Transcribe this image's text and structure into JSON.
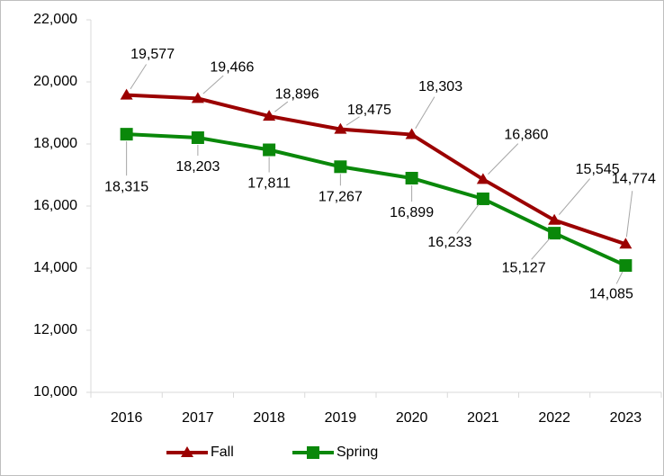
{
  "chart_data": {
    "type": "line",
    "categories": [
      "2016",
      "2017",
      "2018",
      "2019",
      "2020",
      "2021",
      "2022",
      "2023"
    ],
    "series": [
      {
        "name": "Fall",
        "color": "#9b0000",
        "marker": "triangle",
        "values": [
          19577,
          19466,
          18896,
          18475,
          18303,
          16860,
          15545,
          14774
        ],
        "value_labels": [
          "19,577",
          "19,466",
          "18,896",
          "18,475",
          "18,303",
          "16,860",
          "15,545",
          "14,774"
        ]
      },
      {
        "name": "Spring",
        "color": "#0a880a",
        "marker": "square",
        "values": [
          18315,
          18203,
          17811,
          17267,
          16899,
          16233,
          15127,
          14085
        ],
        "value_labels": [
          "18,315",
          "18,203",
          "17,811",
          "17,267",
          "16,899",
          "16,233",
          "15,127",
          "14,085"
        ]
      }
    ],
    "ylim": [
      10000,
      22000
    ],
    "yticks": [
      {
        "value": 10000,
        "label": "10,000"
      },
      {
        "value": 12000,
        "label": "12,000"
      },
      {
        "value": 14000,
        "label": "14,000"
      },
      {
        "value": 16000,
        "label": "16,000"
      },
      {
        "value": 18000,
        "label": "18,000"
      },
      {
        "value": 20000,
        "label": "20,000"
      },
      {
        "value": 22000,
        "label": "22,000"
      }
    ],
    "grid": false,
    "legend": "bottom"
  }
}
